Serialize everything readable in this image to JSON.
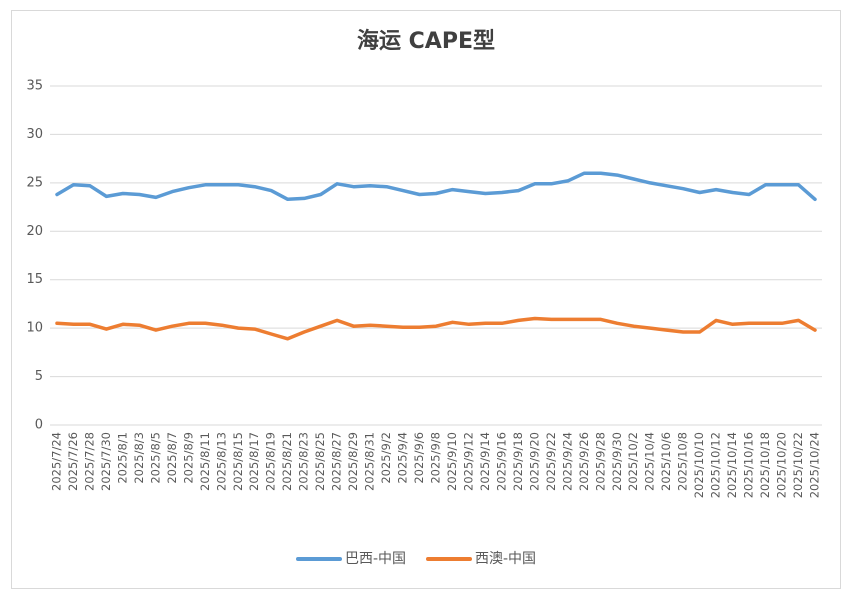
{
  "chart_data": {
    "type": "line",
    "title": "海运 CAPE型",
    "categories": [
      "2025/7/24",
      "2025/7/26",
      "2025/7/28",
      "2025/7/30",
      "2025/8/1",
      "2025/8/3",
      "2025/8/5",
      "2025/8/7",
      "2025/8/9",
      "2025/8/11",
      "2025/8/13",
      "2025/8/15",
      "2025/8/17",
      "2025/8/19",
      "2025/8/21",
      "2025/8/23",
      "2025/8/25",
      "2025/8/27",
      "2025/8/29",
      "2025/8/31",
      "2025/9/2",
      "2025/9/4",
      "2025/9/6",
      "2025/9/8",
      "2025/9/10",
      "2025/9/12",
      "2025/9/14",
      "2025/9/16",
      "2025/9/18",
      "2025/9/20",
      "2025/9/22",
      "2025/9/24",
      "2025/9/26",
      "2025/9/28",
      "2025/9/30",
      "2025/10/2",
      "2025/10/4",
      "2025/10/6",
      "2025/10/8",
      "2025/10/10",
      "2025/10/12",
      "2025/10/14",
      "2025/10/16",
      "2025/10/18",
      "2025/10/20",
      "2025/10/22",
      "2025/10/24"
    ],
    "series": [
      {
        "name": "巴西-中国",
        "color": "#5b9bd5",
        "values": [
          23.8,
          24.8,
          24.7,
          23.6,
          23.9,
          23.8,
          23.5,
          24.1,
          24.5,
          24.8,
          24.8,
          24.8,
          24.6,
          24.2,
          23.3,
          23.4,
          23.8,
          24.9,
          24.6,
          24.7,
          24.6,
          24.2,
          23.8,
          23.9,
          24.3,
          24.1,
          23.9,
          24.0,
          24.2,
          24.9,
          24.9,
          25.2,
          26.0,
          26.0,
          25.8,
          25.4,
          25.0,
          24.7,
          24.4,
          24.0,
          24.3,
          24.0,
          23.8,
          24.8,
          24.8,
          24.8,
          23.3
        ]
      },
      {
        "name": "西澳-中国",
        "color": "#ed7d31",
        "values": [
          10.5,
          10.4,
          10.4,
          9.9,
          10.4,
          10.3,
          9.8,
          10.2,
          10.5,
          10.5,
          10.3,
          10.0,
          9.9,
          9.4,
          8.9,
          9.6,
          10.2,
          10.8,
          10.2,
          10.3,
          10.2,
          10.1,
          10.1,
          10.2,
          10.6,
          10.4,
          10.5,
          10.5,
          10.8,
          11.0,
          10.9,
          10.9,
          10.9,
          10.9,
          10.5,
          10.2,
          10.0,
          9.8,
          9.6,
          9.6,
          10.8,
          10.4,
          10.5,
          10.5,
          10.5,
          10.8,
          9.8
        ]
      }
    ],
    "ylim": [
      0,
      35
    ],
    "yticks": [
      0,
      5,
      10,
      15,
      20,
      25,
      30,
      35
    ],
    "grid": true,
    "legend": "bottom"
  }
}
